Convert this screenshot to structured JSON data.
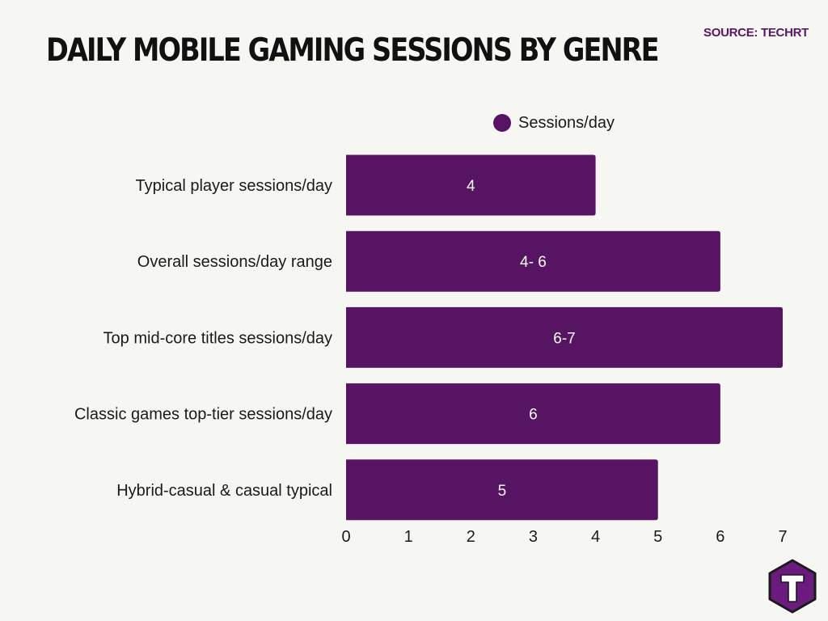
{
  "header": {
    "title": "DAILY MOBILE GAMING SESSIONS BY GENRE",
    "source": "SOURCE: TECHRT"
  },
  "colors": {
    "bar": "#561462",
    "source_text": "#5a1566",
    "label_text": "#1a1a1a",
    "value_text": "#ffffff",
    "logo": "#6b1a7d"
  },
  "chart_data": {
    "type": "bar",
    "orientation": "horizontal",
    "title": "DAILY MOBILE GAMING SESSIONS BY GENRE",
    "categories": [
      "Typical player sessions/day",
      "Overall sessions/day range",
      "Top mid-core titles sessions/day",
      "Classic games top-tier sessions/day",
      "Hybrid-casual & casual typical"
    ],
    "series": [
      {
        "name": "Sessions/day",
        "values": [
          4,
          6,
          7,
          6,
          5
        ],
        "labels": [
          "4",
          "4- 6",
          "6-7",
          "6",
          "5"
        ]
      }
    ],
    "xlim": [
      0,
      7
    ],
    "ticks": [
      0,
      1,
      2,
      3,
      4,
      5,
      6,
      7
    ],
    "grid": false,
    "legend": "top"
  },
  "icons": {
    "brand_logo": "techrt-hexagon-t-logo"
  }
}
